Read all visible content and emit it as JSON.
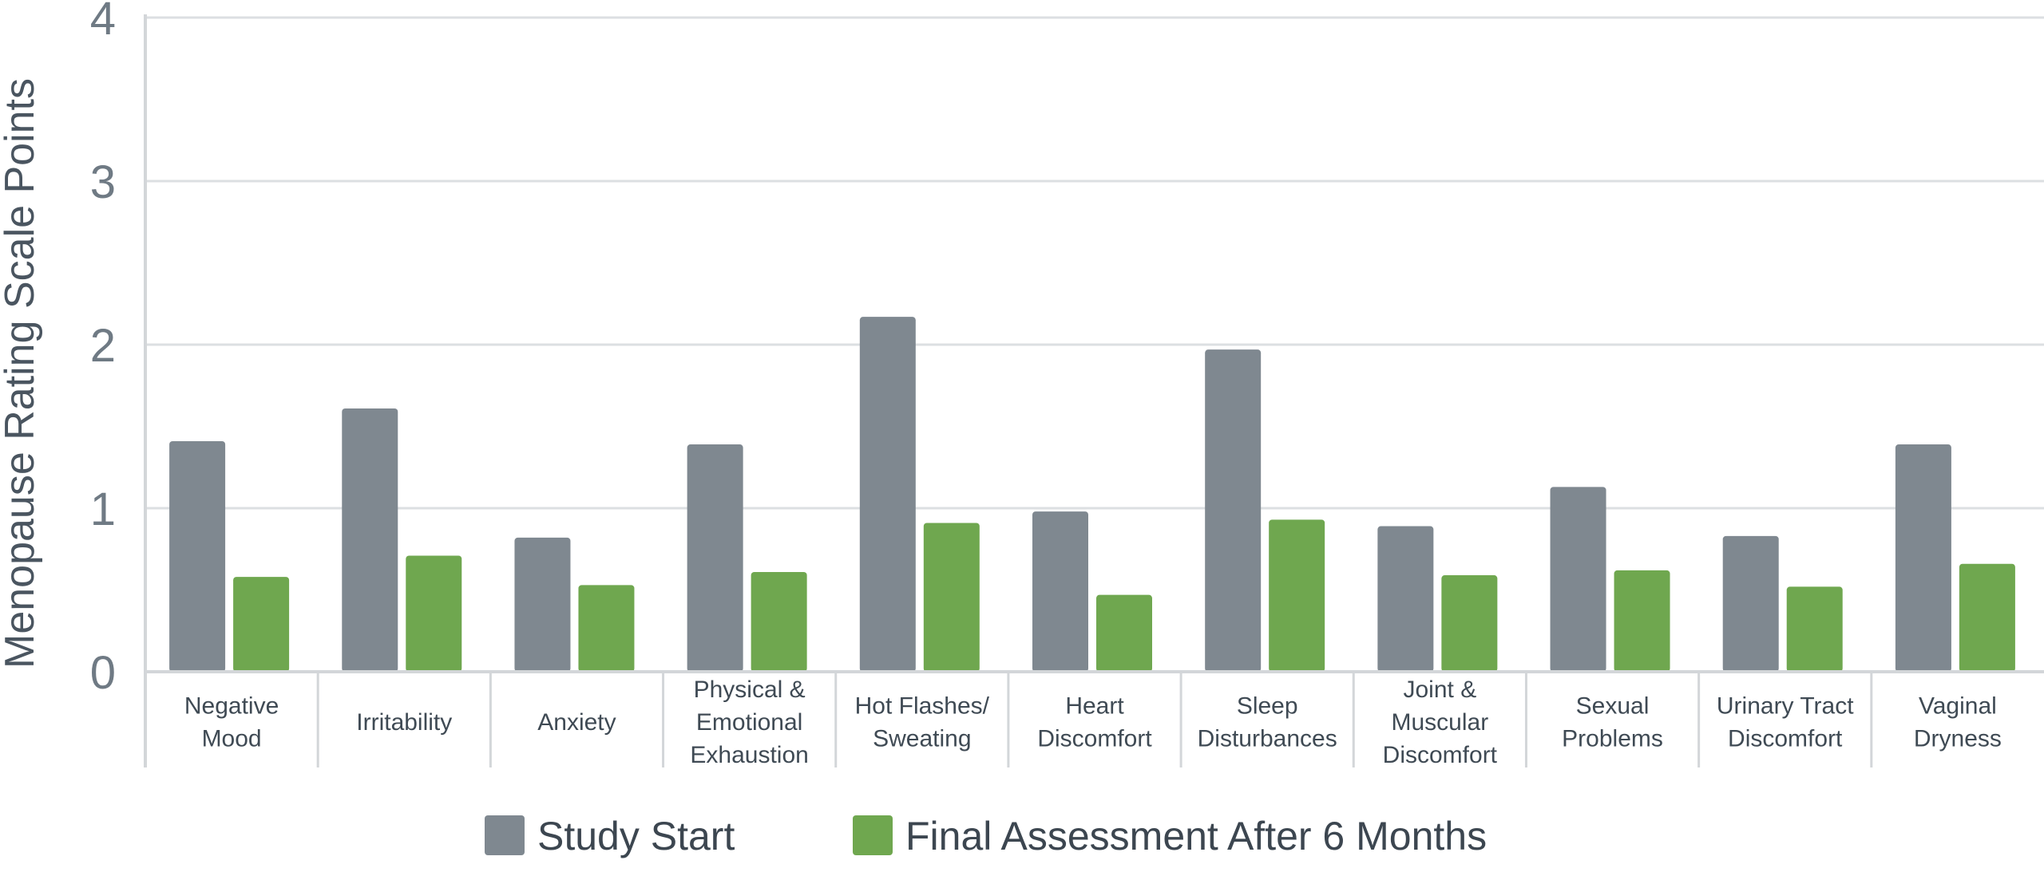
{
  "chart_data": {
    "type": "bar",
    "title": "",
    "xlabel": "",
    "ylabel": "Menopause Rating Scale Points",
    "ylim": [
      0,
      4
    ],
    "yticks": [
      "0",
      "1",
      "2",
      "3",
      "4"
    ],
    "grid": true,
    "legend_position": "bottom",
    "categories": [
      [
        "Negative",
        "Mood"
      ],
      [
        "Irritability"
      ],
      [
        "Anxiety"
      ],
      [
        "Physical &",
        "Emotional",
        "Exhaustion"
      ],
      [
        "Hot Flashes/",
        "Sweating"
      ],
      [
        "Heart",
        "Discomfort"
      ],
      [
        "Sleep",
        "Disturbances"
      ],
      [
        "Joint &",
        "Muscular",
        "Discomfort"
      ],
      [
        "Sexual",
        "Problems"
      ],
      [
        "Urinary Tract",
        "Discomfort"
      ],
      [
        "Vaginal",
        "Dryness"
      ]
    ],
    "series": [
      {
        "name": "Study Start",
        "color": "#7f8890",
        "values": [
          1.41,
          1.61,
          0.82,
          1.39,
          2.17,
          0.98,
          1.97,
          0.89,
          1.13,
          0.83,
          1.39
        ]
      },
      {
        "name": "Final Assessment After 6 Months",
        "color": "#6fa74f",
        "values": [
          0.58,
          0.71,
          0.53,
          0.61,
          0.91,
          0.47,
          0.93,
          0.59,
          0.62,
          0.52,
          0.66
        ]
      }
    ]
  }
}
